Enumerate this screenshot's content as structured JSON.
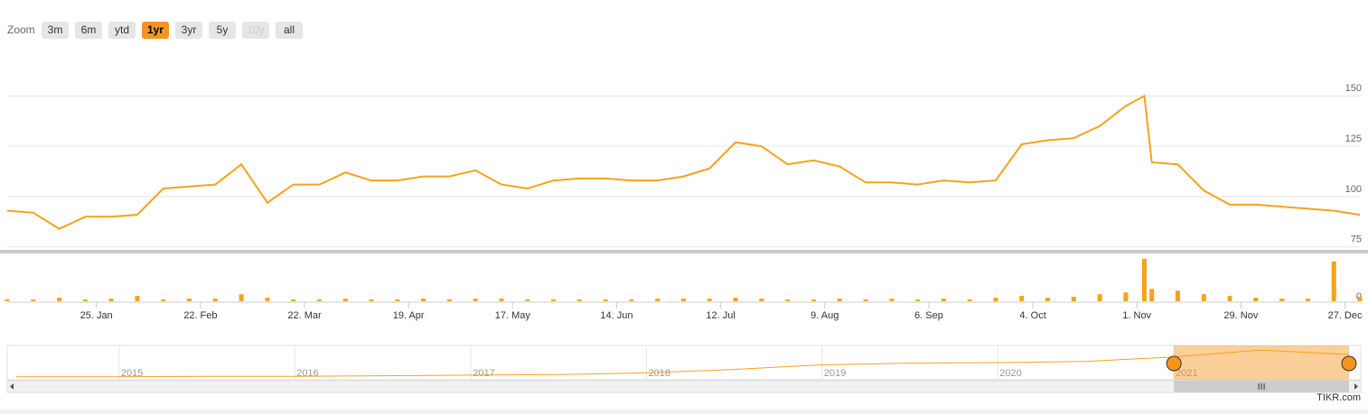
{
  "zoom": {
    "label": "Zoom",
    "buttons": [
      {
        "label": "3m"
      },
      {
        "label": "6m"
      },
      {
        "label": "ytd"
      },
      {
        "label": "1yr",
        "active": true
      },
      {
        "label": "3yr"
      },
      {
        "label": "5y"
      },
      {
        "label": "10y",
        "disabled": true
      },
      {
        "label": "all"
      }
    ]
  },
  "credit": "TIKR.com",
  "chart_data": [
    {
      "type": "line",
      "x": [
        "2021-01-01",
        "2021-01-08",
        "2021-01-15",
        "2021-01-22",
        "2021-01-29",
        "2021-02-05",
        "2021-02-12",
        "2021-02-19",
        "2021-02-26",
        "2021-03-05",
        "2021-03-12",
        "2021-03-19",
        "2021-03-26",
        "2021-04-02",
        "2021-04-09",
        "2021-04-16",
        "2021-04-23",
        "2021-04-30",
        "2021-05-07",
        "2021-05-14",
        "2021-05-21",
        "2021-05-28",
        "2021-06-04",
        "2021-06-11",
        "2021-06-18",
        "2021-06-25",
        "2021-07-02",
        "2021-07-09",
        "2021-07-16",
        "2021-07-23",
        "2021-07-30",
        "2021-08-06",
        "2021-08-13",
        "2021-08-20",
        "2021-08-27",
        "2021-09-03",
        "2021-09-10",
        "2021-09-17",
        "2021-09-24",
        "2021-10-01",
        "2021-10-08",
        "2021-10-15",
        "2021-10-22",
        "2021-10-29",
        "2021-11-03",
        "2021-11-05",
        "2021-11-12",
        "2021-11-19",
        "2021-11-26",
        "2021-12-03",
        "2021-12-10",
        "2021-12-17",
        "2021-12-24",
        "2021-12-31"
      ],
      "series": [
        {
          "color": "#f7a21b",
          "values": [
            93,
            92,
            84,
            90,
            90,
            91,
            104,
            105,
            106,
            116,
            97,
            106,
            106,
            112,
            108,
            108,
            110,
            110,
            113,
            106,
            104,
            108,
            109,
            109,
            108,
            108,
            110,
            114,
            127,
            125,
            116,
            118,
            115,
            107,
            107,
            106,
            108,
            107,
            108,
            126,
            128,
            129,
            135,
            145,
            150,
            117,
            116,
            103,
            96,
            96,
            95,
            94,
            93,
            91
          ]
        },
        {
          "color": "#f7a21b",
          "axis": "y2",
          "values": [
            2,
            2,
            4,
            2,
            3,
            6,
            2,
            3,
            3,
            8,
            4,
            2,
            2,
            3,
            2,
            2,
            3,
            2,
            3,
            3,
            2,
            2,
            2,
            2,
            2,
            3,
            3,
            3,
            4,
            3,
            2,
            2,
            3,
            2,
            3,
            2,
            3,
            2,
            4,
            6,
            4,
            5,
            8,
            10,
            48,
            14,
            12,
            8,
            6,
            4,
            3,
            3,
            45,
            5
          ]
        }
      ],
      "xlim": [
        "2021-01-01",
        "2021-12-31"
      ],
      "xticks": [
        {
          "value": "2021-01-25",
          "label": "25. Jan"
        },
        {
          "value": "2021-02-22",
          "label": "22. Feb"
        },
        {
          "value": "2021-03-22",
          "label": "22. Mar"
        },
        {
          "value": "2021-04-19",
          "label": "19. Apr"
        },
        {
          "value": "2021-05-17",
          "label": "17. May"
        },
        {
          "value": "2021-06-14",
          "label": "14. Jun"
        },
        {
          "value": "2021-07-12",
          "label": "12. Jul"
        },
        {
          "value": "2021-08-09",
          "label": "9. Aug"
        },
        {
          "value": "2021-09-06",
          "label": "6. Sep"
        },
        {
          "value": "2021-10-04",
          "label": "4. Oct"
        },
        {
          "value": "2021-11-01",
          "label": "1. Nov"
        },
        {
          "value": "2021-11-29",
          "label": "29. Nov"
        },
        {
          "value": "2021-12-27",
          "label": "27. Dec"
        }
      ],
      "ylim": [
        74,
        173
      ],
      "yticks": [
        75,
        100,
        125,
        150
      ],
      "y2lim": [
        0,
        50
      ],
      "y2ticks": [
        0
      ],
      "grid": true
    },
    {
      "type": "navigator",
      "x": [
        "2014-06-01",
        "2015-01-01",
        "2015-07-01",
        "2016-01-01",
        "2016-07-01",
        "2017-01-01",
        "2017-07-01",
        "2018-01-01",
        "2018-07-01",
        "2019-01-01",
        "2019-07-01",
        "2020-01-01",
        "2020-07-01",
        "2021-01-01",
        "2021-07-01",
        "2021-12-31"
      ],
      "values": [
        5,
        5,
        6,
        6,
        7,
        8,
        9,
        12,
        18,
        26,
        29,
        30,
        32,
        40,
        52,
        44
      ],
      "color": "#f7a21b",
      "xlim": [
        "2014-06-01",
        "2021-12-31"
      ],
      "xticks": [
        {
          "value": "2015-01-01",
          "label": "2015"
        },
        {
          "value": "2016-01-01",
          "label": "2016"
        },
        {
          "value": "2017-01-01",
          "label": "2017"
        },
        {
          "value": "2018-01-01",
          "label": "2018"
        },
        {
          "value": "2019-01-01",
          "label": "2019"
        },
        {
          "value": "2020-01-01",
          "label": "2020"
        },
        {
          "value": "2021-01-01",
          "label": "2021"
        }
      ],
      "ylim": [
        0,
        60
      ],
      "selection": [
        "2021-01-01",
        "2021-12-31"
      ]
    }
  ]
}
